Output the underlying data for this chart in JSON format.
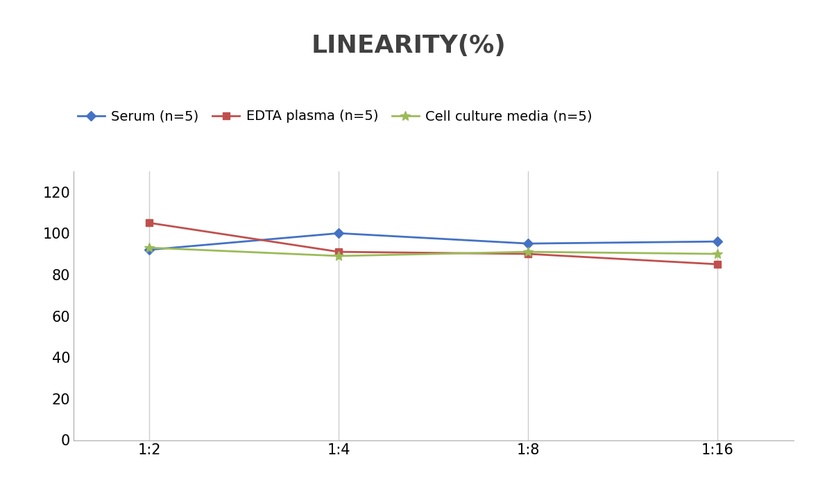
{
  "title": "LINEARITY(%)",
  "x_labels": [
    "1:2",
    "1:4",
    "1:8",
    "1:16"
  ],
  "x_positions": [
    0,
    1,
    2,
    3
  ],
  "series": [
    {
      "label": "Serum (n=5)",
      "values": [
        92,
        100,
        95,
        96
      ],
      "color": "#4472C4",
      "marker": "D",
      "linewidth": 2,
      "markersize": 7
    },
    {
      "label": "EDTA plasma (n=5)",
      "values": [
        105,
        91,
        90,
        85
      ],
      "color": "#C0504D",
      "marker": "s",
      "linewidth": 2,
      "markersize": 7
    },
    {
      "label": "Cell culture media (n=5)",
      "values": [
        93,
        89,
        91,
        90
      ],
      "color": "#9BBB59",
      "marker": "*",
      "linewidth": 2,
      "markersize": 10
    }
  ],
  "ylim": [
    0,
    130
  ],
  "yticks": [
    0,
    20,
    40,
    60,
    80,
    100,
    120
  ],
  "background_color": "#FFFFFF",
  "grid_color": "#CCCCCC",
  "title_fontsize": 26,
  "tick_fontsize": 15,
  "legend_fontsize": 14,
  "title_color": "#404040"
}
